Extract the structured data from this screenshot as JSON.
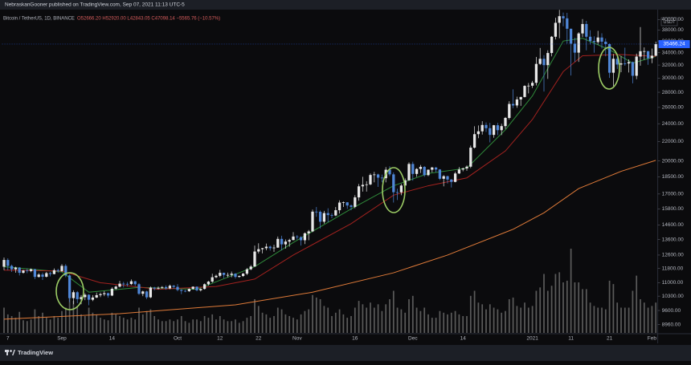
{
  "chart_data": {
    "type": "candlestick",
    "publisher_note": "NebraskanGooner published on TradingView.com, Sep 07, 2021 11:13 UTC-5",
    "symbol_info": "Bitcoin / TetherUS, 1D, BINANCE",
    "quote": "O52666.20 H52920.00 L42843.05 C47098.14 −5565.76 (−10.57%)",
    "currency": "USDT",
    "brand": "TradingView",
    "log_scale": true,
    "grid": false,
    "up_color": "#e8e8e8",
    "down_color": "#4f86d6",
    "volume_color": "#5a5a5a",
    "ylim": [
      8600,
      42000
    ],
    "yticks": [
      {
        "value": 8960,
        "label": "8960.00"
      },
      {
        "value": 9600,
        "label": "9600.00"
      },
      {
        "value": 10300,
        "label": "10300.00"
      },
      {
        "value": 11000,
        "label": "11000.00"
      },
      {
        "value": 11800,
        "label": "11800.00"
      },
      {
        "value": 12600,
        "label": "12600.00"
      },
      {
        "value": 13600,
        "label": "13600.00"
      },
      {
        "value": 14600,
        "label": "14600.00"
      },
      {
        "value": 15800,
        "label": "15800.00"
      },
      {
        "value": 17000,
        "label": "17000.00"
      },
      {
        "value": 18500,
        "label": "18500.00"
      },
      {
        "value": 20000,
        "label": "20000.00"
      },
      {
        "value": 22000,
        "label": "22000.00"
      },
      {
        "value": 24000,
        "label": "24000.00"
      },
      {
        "value": 26000,
        "label": "26000.00"
      },
      {
        "value": 28000,
        "label": "28000.00"
      },
      {
        "value": 30000,
        "label": "30000.00"
      },
      {
        "value": 32000,
        "label": "32000.00"
      },
      {
        "value": 34000,
        "label": "34000.00"
      },
      {
        "value": 36000,
        "label": "36000.00"
      },
      {
        "value": 38000,
        "label": "38000.00"
      },
      {
        "value": 40000,
        "label": "40000.00"
      }
    ],
    "categories": [
      null,
      "7",
      null,
      null,
      null,
      null,
      null,
      null,
      null,
      null,
      null,
      null,
      null,
      null,
      null,
      "Sep",
      null,
      null,
      null,
      null,
      null,
      null,
      null,
      null,
      null,
      null,
      null,
      null,
      "14",
      null,
      null,
      null,
      null,
      null,
      null,
      null,
      null,
      null,
      null,
      null,
      null,
      null,
      null,
      null,
      null,
      "Oct",
      null,
      null,
      null,
      null,
      null,
      null,
      null,
      null,
      null,
      null,
      "12",
      null,
      null,
      null,
      null,
      null,
      null,
      null,
      null,
      null,
      "22",
      null,
      null,
      null,
      null,
      null,
      null,
      null,
      null,
      null,
      "Nov",
      null,
      null,
      null,
      null,
      null,
      null,
      null,
      null,
      null,
      null,
      null,
      null,
      null,
      null,
      "16",
      null,
      null,
      null,
      null,
      null,
      null,
      null,
      null,
      null,
      null,
      null,
      null,
      null,
      null,
      "Dec",
      null,
      null,
      null,
      null,
      null,
      null,
      null,
      null,
      null,
      null,
      null,
      null,
      "14",
      null,
      null,
      null,
      null,
      null,
      null,
      null,
      null,
      null,
      null,
      null,
      null,
      null,
      null,
      null,
      null,
      null,
      "2021",
      null,
      null,
      null,
      null,
      null,
      null,
      null,
      null,
      null,
      "11",
      null,
      null,
      null,
      null,
      null,
      null,
      null,
      null,
      null,
      "21",
      null,
      null,
      null,
      null,
      null,
      null,
      null,
      null,
      null,
      null,
      "Feb",
      null
    ],
    "open": [
      11900,
      12300,
      11950,
      11750,
      11850,
      11550,
      11680,
      11650,
      11750,
      11320,
      11450,
      11330,
      11530,
      11480,
      11700,
      11650,
      11950,
      11400,
      10200,
      10500,
      10150,
      10250,
      10370,
      10120,
      10230,
      10350,
      10400,
      10450,
      10330,
      10680,
      10790,
      10950,
      10940,
      10930,
      11080,
      10920,
      10420,
      10540,
      10240,
      10740,
      10690,
      10730,
      10770,
      10700,
      10840,
      10780,
      10620,
      10570,
      10550,
      10670,
      10790,
      10600,
      10670,
      10920,
      11060,
      11300,
      11380,
      11550,
      11430,
      11430,
      11500,
      11320,
      11370,
      11500,
      11750,
      11910,
      12820,
      12970,
      13030,
      13130,
      13030,
      13070,
      13640,
      13280,
      13460,
      13560,
      13800,
      13760,
      13550,
      14020,
      14150,
      15590,
      15580,
      14840,
      15480,
      15330,
      15300,
      15700,
      16300,
      16320,
      16070,
      15960,
      16720,
      17650,
      17780,
      17820,
      18660,
      18710,
      18420,
      18370,
      19150,
      18720,
      17150,
      17140,
      17720,
      18180,
      19700,
      18760,
      19220,
      19420,
      18650,
      19150,
      19360,
      19170,
      18320,
      18550,
      18250,
      18040,
      18800,
      19170,
      19270,
      19440,
      21340,
      22800,
      23120,
      23850,
      23480,
      22720,
      23820,
      23250,
      23720,
      24690,
      26440,
      26250,
      27030,
      27360,
      28890,
      28920,
      29330,
      32180,
      33000,
      31990,
      33950,
      36770,
      39370,
      40670,
      40240,
      38240,
      35540,
      34010,
      37370,
      39140,
      36770,
      36010,
      35820,
      36630,
      35890,
      35470,
      30820,
      33000,
      32080,
      32260,
      32250,
      32470,
      30360,
      33360,
      34250,
      34260,
      33090,
      33500
    ],
    "high": [
      12450,
      12400,
      12020,
      11900,
      11880,
      11720,
      11800,
      11800,
      11780,
      11530,
      11560,
      11600,
      11600,
      11800,
      11780,
      12050,
      12050,
      11450,
      10600,
      10560,
      10350,
      10450,
      10400,
      10350,
      10480,
      10480,
      10560,
      10480,
      10750,
      10850,
      11100,
      11050,
      11040,
      11180,
      11100,
      10980,
      10580,
      10580,
      10800,
      10780,
      10800,
      10820,
      10860,
      10900,
      10880,
      10930,
      10650,
      10620,
      10700,
      10800,
      10800,
      10700,
      10960,
      11100,
      11500,
      11450,
      11720,
      11560,
      11560,
      11620,
      11530,
      11400,
      11540,
      11820,
      12000,
      13200,
      13350,
      13050,
      13330,
      13200,
      13250,
      13800,
      13850,
      13600,
      13650,
      14100,
      13900,
      13820,
      14080,
      14250,
      15750,
      15950,
      15680,
      15650,
      15850,
      15470,
      15950,
      16480,
      16380,
      16330,
      16150,
      16900,
      17850,
      18500,
      18100,
      18800,
      18950,
      18780,
      18700,
      19400,
      19480,
      18900,
      17450,
      17850,
      18350,
      19860,
      19920,
      19300,
      19600,
      19500,
      19170,
      19420,
      19400,
      19200,
      18650,
      18600,
      18300,
      18950,
      19400,
      19350,
      19560,
      21560,
      23700,
      23800,
      24300,
      24150,
      24100,
      23850,
      24100,
      24000,
      24800,
      26800,
      28400,
      27400,
      27400,
      28990,
      29300,
      29600,
      33300,
      34800,
      33600,
      34400,
      36900,
      40350,
      41950,
      41400,
      41350,
      38250,
      36600,
      37600,
      40100,
      39750,
      37950,
      36850,
      37850,
      37400,
      36450,
      35600,
      33800,
      33850,
      33450,
      34850,
      32900,
      32550,
      33850,
      38550,
      34900,
      34300,
      34700,
      35900
    ],
    "low": [
      11700,
      11700,
      11600,
      11550,
      11400,
      11500,
      11530,
      11580,
      11200,
      11280,
      11150,
      11290,
      11350,
      11460,
      11550,
      11600,
      11300,
      10000,
      9900,
      9950,
      9900,
      10100,
      9850,
      10050,
      10200,
      10250,
      10300,
      10220,
      10300,
      10620,
      10750,
      10750,
      10800,
      10880,
      10820,
      10360,
      10300,
      10150,
      10200,
      10600,
      10640,
      10680,
      10630,
      10650,
      10680,
      10550,
      10400,
      10500,
      10520,
      10630,
      10550,
      10540,
      10640,
      10850,
      11000,
      11250,
      11300,
      11250,
      11300,
      11300,
      11230,
      11280,
      11320,
      11420,
      11700,
      11900,
      12700,
      12700,
      12900,
      12880,
      12800,
      13050,
      12900,
      13000,
      13130,
      13550,
      13600,
      13200,
      13300,
      13550,
      14100,
      15200,
      14350,
      14700,
      14800,
      15100,
      15250,
      15450,
      15950,
      15800,
      15700,
      15850,
      16450,
      17200,
      17200,
      17750,
      18000,
      17600,
      18000,
      18000,
      18550,
      16300,
      16500,
      16900,
      17500,
      18150,
      18150,
      18500,
      18850,
      18500,
      18550,
      18900,
      18900,
      18200,
      17650,
      17900,
      17550,
      18000,
      18750,
      19000,
      19050,
      19300,
      21250,
      22350,
      22750,
      23050,
      21900,
      22400,
      22700,
      22700,
      23400,
      24500,
      25900,
      25950,
      26200,
      27300,
      27850,
      28600,
      28950,
      32000,
      28100,
      29900,
      33400,
      36300,
      36500,
      38700,
      35550,
      30400,
      32500,
      32500,
      36700,
      34400,
      35400,
      34000,
      35350,
      34700,
      33400,
      30050,
      28850,
      31400,
      30900,
      31900,
      30850,
      29250,
      29850,
      31900,
      32850,
      32050,
      32300,
      33400
    ],
    "close": [
      12300,
      11950,
      11750,
      11850,
      11550,
      11680,
      11650,
      11750,
      11320,
      11450,
      11330,
      11530,
      11480,
      11700,
      11650,
      11950,
      11400,
      10200,
      10500,
      10150,
      10250,
      10370,
      10120,
      10230,
      10350,
      10400,
      10450,
      10330,
      10680,
      10790,
      10950,
      10940,
      10930,
      11080,
      10920,
      10420,
      10540,
      10240,
      10740,
      10690,
      10730,
      10770,
      10700,
      10840,
      10780,
      10620,
      10570,
      10550,
      10670,
      10790,
      10600,
      10670,
      10920,
      11060,
      11300,
      11380,
      11550,
      11430,
      11430,
      11500,
      11320,
      11370,
      11500,
      11750,
      11910,
      12820,
      12970,
      13030,
      13130,
      13030,
      13070,
      13640,
      13280,
      13460,
      13560,
      13800,
      13760,
      13550,
      14020,
      14150,
      15590,
      15580,
      14840,
      15480,
      15330,
      15300,
      15700,
      16300,
      16320,
      16070,
      15960,
      16720,
      17650,
      17780,
      17820,
      18660,
      18710,
      18420,
      18370,
      19150,
      18720,
      17150,
      17140,
      17720,
      18180,
      19700,
      18760,
      19220,
      19420,
      18650,
      19150,
      19360,
      19170,
      18320,
      18550,
      18250,
      18040,
      18800,
      19170,
      19270,
      19440,
      21340,
      22800,
      23120,
      23850,
      23480,
      22720,
      23820,
      23250,
      23720,
      24690,
      26440,
      26250,
      27030,
      27360,
      28890,
      28920,
      29330,
      32180,
      33000,
      31990,
      33950,
      36770,
      39370,
      40670,
      40240,
      38240,
      35540,
      34010,
      37370,
      39140,
      36770,
      36010,
      35820,
      36630,
      35890,
      35470,
      30820,
      33000,
      32080,
      32260,
      32250,
      32470,
      30360,
      33360,
      34250,
      34260,
      33090,
      33500,
      35466.24
    ],
    "volume": [
      30,
      22,
      20,
      18,
      25,
      15,
      14,
      16,
      28,
      20,
      24,
      18,
      16,
      20,
      18,
      26,
      30,
      45,
      38,
      32,
      22,
      20,
      30,
      24,
      22,
      18,
      16,
      15,
      24,
      22,
      20,
      18,
      16,
      18,
      16,
      30,
      22,
      26,
      28,
      20,
      16,
      14,
      14,
      16,
      14,
      16,
      20,
      14,
      12,
      16,
      16,
      14,
      20,
      18,
      22,
      16,
      20,
      16,
      14,
      14,
      16,
      12,
      14,
      18,
      20,
      40,
      32,
      24,
      22,
      18,
      20,
      30,
      28,
      22,
      20,
      18,
      16,
      22,
      26,
      28,
      45,
      42,
      40,
      32,
      30,
      20,
      24,
      28,
      22,
      18,
      20,
      30,
      38,
      34,
      30,
      36,
      30,
      34,
      26,
      34,
      40,
      50,
      30,
      28,
      24,
      40,
      44,
      30,
      26,
      30,
      22,
      18,
      18,
      26,
      24,
      22,
      24,
      26,
      22,
      20,
      20,
      44,
      50,
      36,
      34,
      28,
      34,
      30,
      28,
      24,
      26,
      40,
      42,
      32,
      30,
      36,
      30,
      32,
      50,
      54,
      70,
      50,
      56,
      70,
      72,
      60,
      62,
      100,
      60,
      60,
      52,
      52,
      36,
      32,
      30,
      30,
      28,
      62,
      58,
      36,
      30,
      30,
      30,
      50,
      68,
      40,
      36,
      30,
      32,
      36
    ],
    "moving_averages": [
      {
        "color": "#2f8a3a",
        "x": [
          0,
          15,
          22,
          35,
          50,
          65,
          75,
          90,
          101,
          110,
          120,
          130,
          137,
          145,
          150,
          157,
          163,
          169
        ],
        "values": [
          11900,
          11600,
          10500,
          10750,
          10650,
          11900,
          13400,
          15800,
          17700,
          18800,
          19300,
          23300,
          27500,
          36000,
          36500,
          34500,
          32300,
          33400
        ]
      },
      {
        "color": "#a3221f",
        "x": [
          0,
          15,
          25,
          40,
          55,
          65,
          75,
          90,
          101,
          110,
          120,
          130,
          137,
          145,
          150,
          160,
          169
        ],
        "values": [
          11700,
          11650,
          11000,
          10650,
          10800,
          11200,
          12600,
          14700,
          16900,
          17700,
          18400,
          21000,
          24500,
          31000,
          33500,
          33700,
          33400
        ]
      },
      {
        "color": "#e07b39",
        "x": [
          0,
          30,
          60,
          80,
          101,
          115,
          132,
          140,
          149,
          160,
          169
        ],
        "values": [
          9200,
          9450,
          9870,
          10500,
          11550,
          12600,
          14300,
          15500,
          17460,
          19000,
          20050
        ]
      }
    ]
  }
}
